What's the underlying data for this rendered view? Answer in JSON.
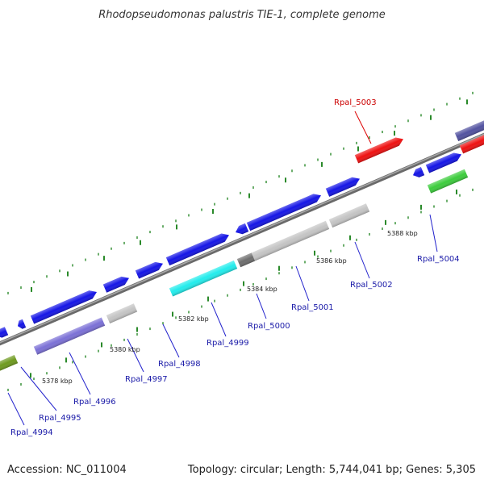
{
  "title": "Rhodopseudomonas palustris TIE-1, complete genome",
  "footer": {
    "accession": "Accession: NC_011004",
    "topology": "Topology: circular; Length: 5,744,041 bp; Genes: 5,305"
  },
  "kbp_labels": [
    "5378 kbp",
    "5380 kbp",
    "5382 kbp",
    "5384 kbp",
    "5386 kbp",
    "5388 kbp"
  ],
  "gene_labels": [
    "Rpal_4994",
    "Rpal_4995",
    "Rpal_4996",
    "Rpal_4997",
    "Rpal_4998",
    "Rpal_4999",
    "Rpal_5000",
    "Rpal_5001",
    "Rpal_5002",
    "Rpal_5003",
    "Rpal_5004"
  ],
  "colors": {
    "backbone": "#8a8a8a",
    "tick": "#2a8a2a",
    "gene_blue": "#1515e6",
    "gene_lavender": "#7b70d6",
    "gene_cyan": "#22ecec",
    "gene_grey": "#c4c4c4",
    "gene_darkgrey": "#6e6e6e",
    "gene_green": "#3ccc3c",
    "gene_olive": "#6e9a1e",
    "gene_red": "#ee1111",
    "gene_slate": "#5252a0",
    "label_line_blue": "#2222cc",
    "label_line_red": "#dd0000"
  }
}
